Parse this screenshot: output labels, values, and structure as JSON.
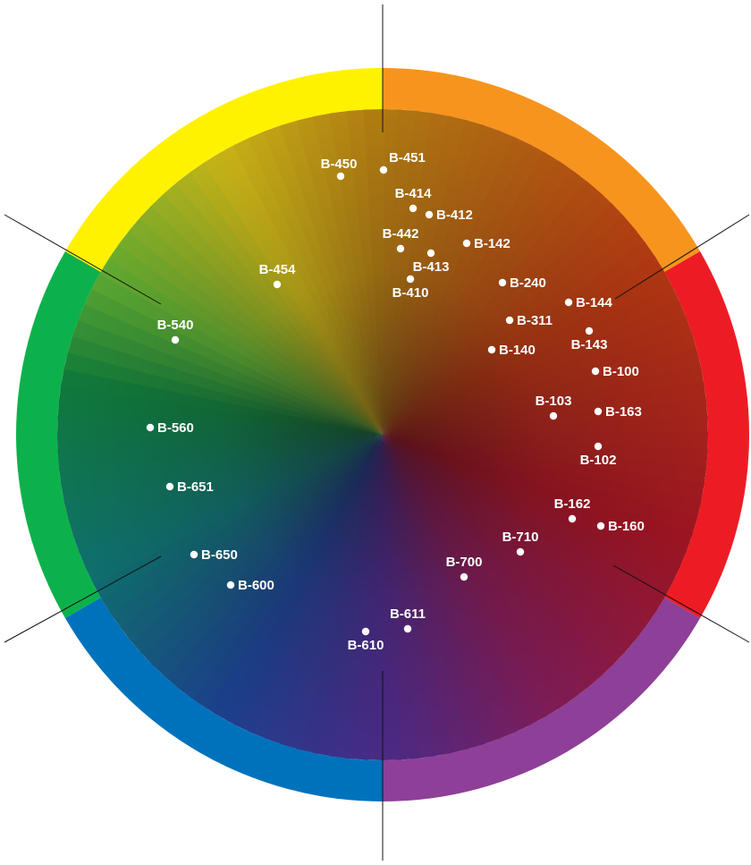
{
  "colors": {
    "ring": [
      "#f7941d",
      "#ed1c24",
      "#8e3f98",
      "#0072bc",
      "#0db14b",
      "#fff200"
    ],
    "center": "#1a0f14",
    "marker": "#ffffff",
    "divider": "#111111"
  },
  "samples": [
    {
      "label": "B-450",
      "side": "left"
    },
    {
      "label": "B-451",
      "side": "right"
    },
    {
      "label": "B-414",
      "side": "top"
    },
    {
      "label": "B-412",
      "side": "right"
    },
    {
      "label": "B-442",
      "side": "top"
    },
    {
      "label": "B-142",
      "side": "right"
    },
    {
      "label": "B-413",
      "side": "bottom"
    },
    {
      "label": "B-454",
      "side": "top"
    },
    {
      "label": "B-410",
      "side": "bottom"
    },
    {
      "label": "B-240",
      "side": "right"
    },
    {
      "label": "B-144",
      "side": "right"
    },
    {
      "label": "B-540",
      "side": "top"
    },
    {
      "label": "B-311",
      "side": "right"
    },
    {
      "label": "B-143",
      "side": "bottom"
    },
    {
      "label": "B-140",
      "side": "right"
    },
    {
      "label": "B-100",
      "side": "right"
    },
    {
      "label": "B-103",
      "side": "top"
    },
    {
      "label": "B-163",
      "side": "right"
    },
    {
      "label": "B-560",
      "side": "right"
    },
    {
      "label": "B-102",
      "side": "bottom"
    },
    {
      "label": "B-651",
      "side": "right"
    },
    {
      "label": "B-162",
      "side": "top"
    },
    {
      "label": "B-160",
      "side": "right"
    },
    {
      "label": "B-710",
      "side": "top"
    },
    {
      "label": "B-650",
      "side": "right"
    },
    {
      "label": "B-700",
      "side": "top"
    },
    {
      "label": "B-600",
      "side": "right"
    },
    {
      "label": "B-611",
      "side": "top"
    },
    {
      "label": "B-610",
      "side": "bottom"
    }
  ]
}
